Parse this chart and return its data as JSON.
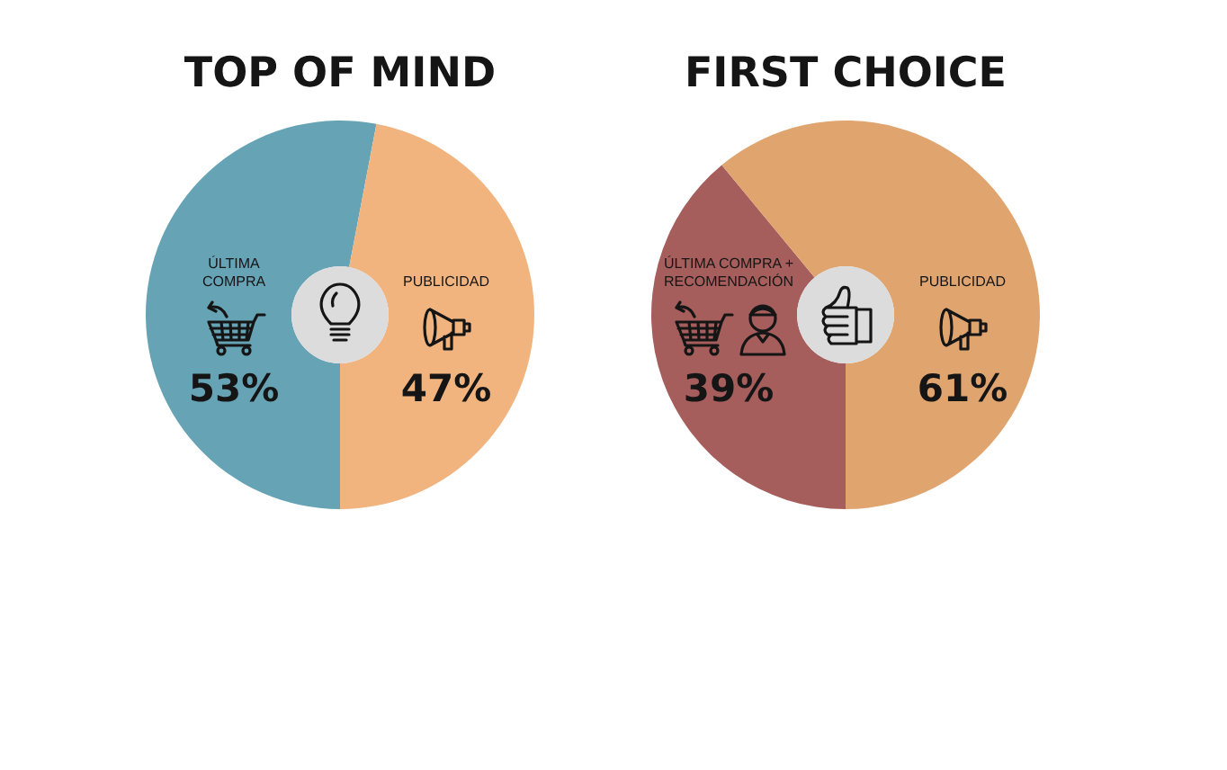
{
  "chart_data": [
    {
      "type": "donut",
      "title": "TOP OF MIND",
      "categories": [
        "ÚLTIMA COMPRA",
        "PUBLICIDAD"
      ],
      "values": [
        53,
        47
      ],
      "colors": [
        "#65a3b5",
        "#f1b47f"
      ],
      "value_labels": [
        "53%",
        "47%"
      ]
    },
    {
      "type": "donut",
      "title": "FIRST CHOICE",
      "categories": [
        "ÚLTIMA COMPRA + RECOMENDACIÓN",
        "PUBLICIDAD"
      ],
      "values": [
        39,
        61
      ],
      "colors": [
        "#a65e5c",
        "#e0a46f"
      ],
      "value_labels": [
        "39%",
        "61%"
      ]
    }
  ]
}
